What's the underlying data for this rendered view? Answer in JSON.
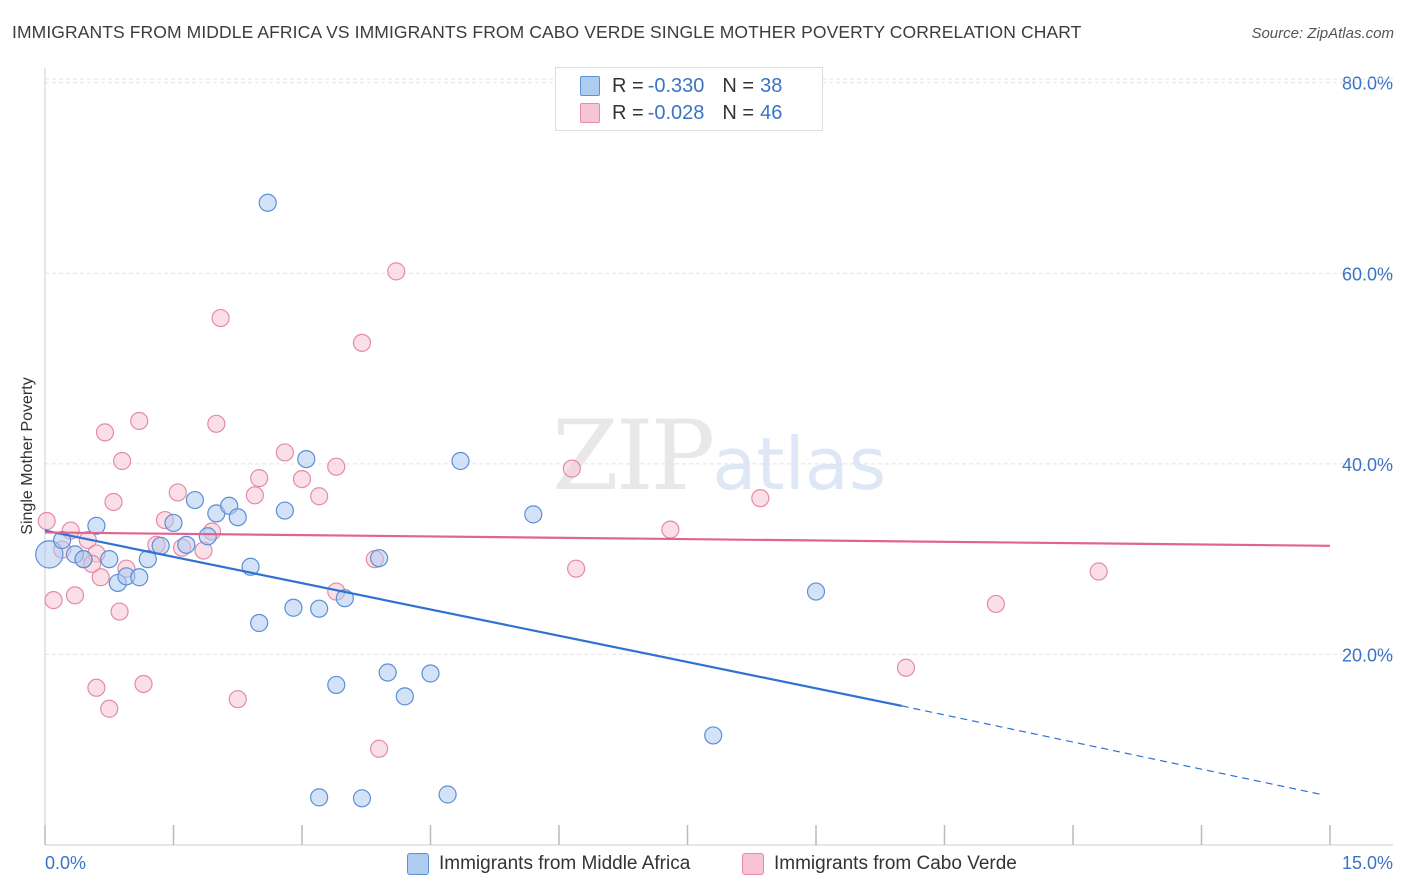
{
  "title": "IMMIGRANTS FROM MIDDLE AFRICA VS IMMIGRANTS FROM CABO VERDE SINGLE MOTHER POVERTY CORRELATION CHART",
  "source": "Source: ZipAtlas.com",
  "watermark": {
    "zip": "ZIP",
    "atlas": "atlas"
  },
  "legend": {
    "row1": {
      "r_label": "R =",
      "r_value": "-0.330",
      "n_label": "N =",
      "n_value": "38"
    },
    "row2": {
      "r_label": "R =",
      "r_value": "-0.028",
      "n_label": "N =",
      "n_value": "46"
    }
  },
  "colors": {
    "blue_fill": "#aecbf0",
    "blue_stroke": "#5b8fd6",
    "blue_line": "#2f72d0",
    "pink_fill": "#f7c4d3",
    "pink_stroke": "#e58aa8",
    "pink_line": "#e0648e",
    "axis_text": "#3b73c4",
    "grid": "#e2e2e2"
  },
  "chart_data": {
    "type": "scatter",
    "title": "IMMIGRANTS FROM MIDDLE AFRICA VS IMMIGRANTS FROM CABO VERDE SINGLE MOTHER POVERTY CORRELATION CHART",
    "xlabel": "",
    "ylabel": "Single Mother Poverty",
    "xlim": [
      0,
      15
    ],
    "ylim": [
      0,
      82
    ],
    "x_tick_labels": [
      "0.0%",
      "15.0%"
    ],
    "y_ticks": [
      20,
      40,
      60,
      80
    ],
    "y_tick_labels": [
      "20.0%",
      "40.0%",
      "60.0%",
      "80.0%"
    ],
    "series": [
      {
        "name": "Immigrants from Middle Africa",
        "color": "blue",
        "r": -0.33,
        "n": 38,
        "trend": {
          "x0": 0,
          "y0": 33.0,
          "x1": 10.0,
          "y1": 14.6,
          "dash_to_x": 14.9,
          "dash_to_y": 5.3
        },
        "points": [
          [
            0.05,
            30.5,
            1.6
          ],
          [
            0.2,
            32.0,
            1.0
          ],
          [
            0.35,
            30.5,
            1.0
          ],
          [
            0.45,
            30.0,
            1.0
          ],
          [
            0.6,
            33.5,
            1.0
          ],
          [
            0.75,
            30.0,
            1.0
          ],
          [
            0.85,
            27.5,
            1.0
          ],
          [
            0.95,
            28.2,
            1.0
          ],
          [
            1.1,
            28.1,
            1.0
          ],
          [
            1.2,
            30.0,
            1.0
          ],
          [
            1.35,
            31.4,
            1.0
          ],
          [
            1.5,
            33.8,
            1.0
          ],
          [
            1.65,
            31.5,
            1.0
          ],
          [
            1.75,
            36.2,
            1.0
          ],
          [
            1.9,
            32.4,
            1.0
          ],
          [
            2.0,
            34.8,
            1.0
          ],
          [
            2.15,
            35.6,
            1.0
          ],
          [
            2.25,
            34.4,
            1.0
          ],
          [
            2.4,
            29.2,
            1.0
          ],
          [
            2.5,
            23.3,
            1.0
          ],
          [
            2.6,
            67.4,
            1.0
          ],
          [
            2.8,
            35.1,
            1.0
          ],
          [
            2.9,
            24.9,
            1.0
          ],
          [
            3.05,
            40.5,
            1.0
          ],
          [
            3.2,
            24.8,
            1.0
          ],
          [
            3.4,
            16.8,
            1.0
          ],
          [
            3.5,
            25.9,
            1.0
          ],
          [
            3.9,
            30.1,
            1.0
          ],
          [
            4.0,
            18.1,
            1.0
          ],
          [
            4.2,
            15.6,
            1.0
          ],
          [
            4.5,
            18.0,
            1.0
          ],
          [
            4.85,
            40.3,
            1.0
          ],
          [
            5.7,
            34.7,
            1.0
          ],
          [
            3.2,
            5.0,
            1.0
          ],
          [
            3.7,
            4.9,
            1.0
          ],
          [
            4.7,
            5.3,
            1.0
          ],
          [
            7.8,
            11.5,
            1.0
          ],
          [
            9.0,
            26.6,
            1.0
          ]
        ]
      },
      {
        "name": "Immigrants from Cabo Verde",
        "color": "pink",
        "r": -0.028,
        "n": 46,
        "trend": {
          "x0": 0,
          "y0": 32.8,
          "x1": 15.0,
          "y1": 31.4
        },
        "points": [
          [
            0.02,
            34.0,
            1.0
          ],
          [
            0.1,
            25.7,
            1.0
          ],
          [
            0.2,
            31.0,
            1.0
          ],
          [
            0.3,
            33.0,
            1.0
          ],
          [
            0.35,
            26.2,
            1.0
          ],
          [
            0.45,
            30.0,
            1.0
          ],
          [
            0.5,
            32.0,
            1.0
          ],
          [
            0.6,
            30.6,
            1.0
          ],
          [
            0.6,
            16.5,
            1.0
          ],
          [
            0.65,
            28.1,
            1.0
          ],
          [
            0.7,
            43.3,
            1.0
          ],
          [
            0.75,
            14.3,
            1.0
          ],
          [
            0.8,
            36.0,
            1.0
          ],
          [
            0.87,
            24.5,
            1.0
          ],
          [
            0.9,
            40.3,
            1.0
          ],
          [
            0.95,
            29.0,
            1.0
          ],
          [
            1.1,
            44.5,
            1.0
          ],
          [
            1.15,
            16.9,
            1.0
          ],
          [
            1.3,
            31.5,
            1.0
          ],
          [
            1.4,
            34.1,
            1.0
          ],
          [
            1.55,
            37.0,
            1.0
          ],
          [
            1.85,
            30.9,
            1.0
          ],
          [
            1.95,
            32.9,
            1.0
          ],
          [
            2.0,
            44.2,
            1.0
          ],
          [
            2.05,
            55.3,
            1.0
          ],
          [
            2.25,
            15.3,
            1.0
          ],
          [
            2.45,
            36.7,
            1.0
          ],
          [
            2.5,
            38.5,
            1.0
          ],
          [
            2.8,
            41.2,
            1.0
          ],
          [
            3.0,
            38.4,
            1.0
          ],
          [
            3.2,
            36.6,
            1.0
          ],
          [
            3.4,
            39.7,
            1.0
          ],
          [
            3.4,
            26.6,
            1.0
          ],
          [
            3.7,
            52.7,
            1.0
          ],
          [
            3.85,
            30.0,
            1.0
          ],
          [
            3.9,
            10.1,
            1.0
          ],
          [
            4.1,
            60.2,
            1.0
          ],
          [
            6.15,
            39.5,
            1.0
          ],
          [
            6.2,
            29.0,
            1.0
          ],
          [
            7.3,
            33.1,
            1.0
          ],
          [
            8.35,
            36.4,
            1.0
          ],
          [
            10.05,
            18.6,
            1.0
          ],
          [
            11.1,
            25.3,
            1.0
          ],
          [
            12.3,
            28.7,
            1.0
          ],
          [
            1.6,
            31.2,
            1.0
          ],
          [
            0.55,
            29.5,
            1.0
          ]
        ]
      }
    ]
  }
}
